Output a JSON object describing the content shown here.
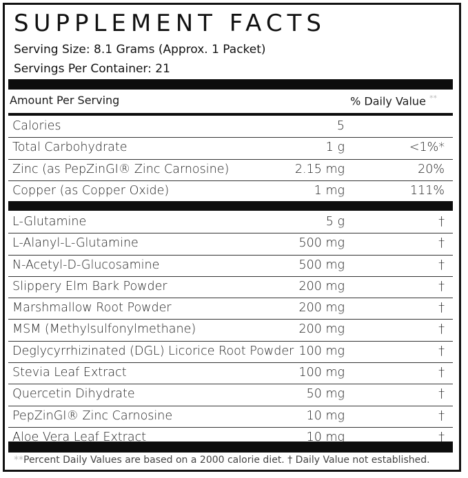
{
  "title": "SUPPLEMENT FACTS",
  "serving_size": "Serving Size: 8.1 Grams (Approx. 1 Packet)",
  "servings_per_container": "Servings Per Container: 21",
  "header": {
    "amount": "Amount Per Serving",
    "daily_value": "% Daily Value",
    "daily_value_mark": "**"
  },
  "nutrients": [
    {
      "name": "Calories",
      "amount": "5",
      "dv": ""
    },
    {
      "name": "Total Carbohydrate",
      "amount": "1 g",
      "dv": "<1%*"
    },
    {
      "name": "Zinc (as PepZinGI® Zinc Carnosine)",
      "amount": "2.15 mg",
      "dv": "20%"
    },
    {
      "name": "Copper (as Copper Oxide)",
      "amount": "1 mg",
      "dv": "111%"
    }
  ],
  "ingredients": [
    {
      "name": "L-Glutamine",
      "amount": "5 g",
      "dv": "†"
    },
    {
      "name": "L-Alanyl-L-Glutamine",
      "amount": "500 mg",
      "dv": "†"
    },
    {
      "name": "N-Acetyl-D-Glucosamine",
      "amount": "500 mg",
      "dv": "†"
    },
    {
      "name": "Slippery Elm Bark Powder",
      "amount": "200 mg",
      "dv": "†"
    },
    {
      "name": "Marshmallow Root Powder",
      "amount": "200 mg",
      "dv": "†"
    },
    {
      "name": "MSM (Methylsulfonylmethane)",
      "amount": "200 mg",
      "dv": "†"
    },
    {
      "name": "Deglycyrrhizinated (DGL) Licorice Root Powder",
      "amount": "100 mg",
      "dv": "†"
    },
    {
      "name": "Stevia Leaf Extract",
      "amount": "100 mg",
      "dv": "†"
    },
    {
      "name": "Quercetin Dihydrate",
      "amount": "50 mg",
      "dv": "†"
    },
    {
      "name": "PepZinGI® Zinc Carnosine",
      "amount": "10 mg",
      "dv": "†"
    },
    {
      "name": "Aloe Vera Leaf Extract",
      "amount": "10 mg",
      "dv": "†"
    }
  ],
  "footnote": {
    "mark": "**",
    "text": "Percent Daily Values are based on a 2000 calorie diet. † Daily Value not established."
  }
}
